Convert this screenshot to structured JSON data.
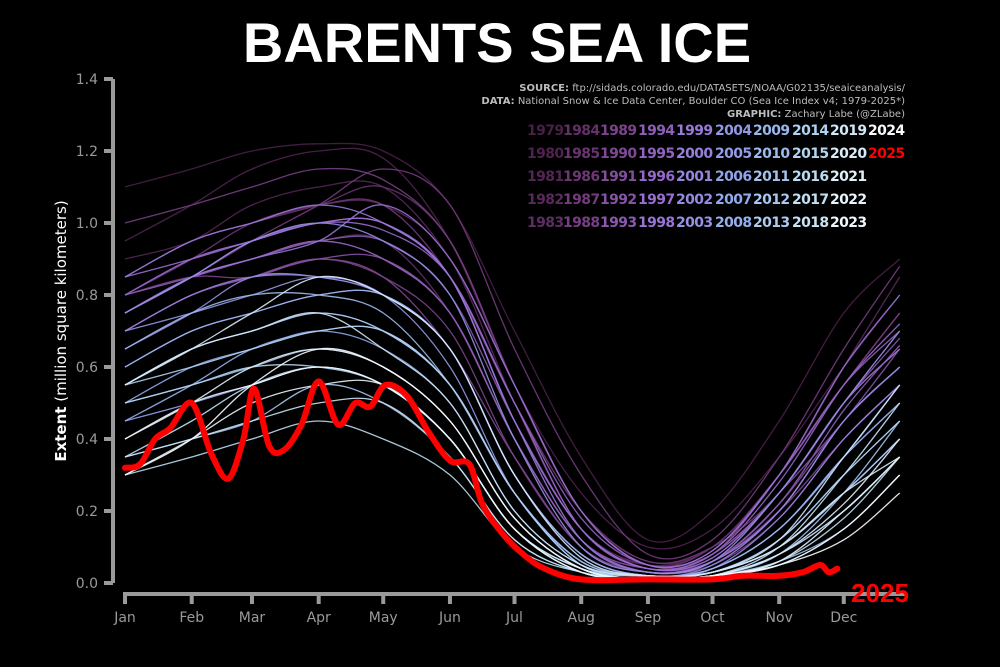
{
  "title": "BARENTS SEA ICE",
  "credits": {
    "source_label": "SOURCE:",
    "source": "ftp://sidads.colorado.edu/DATASETS/NOAA/G02135/seaiceanalysis/",
    "data_label": "DATA:",
    "data": "National Snow & Ice Data Center, Boulder CO (Sea Ice Index v4; 1979-2025*)",
    "graphic_label": "GRAPHIC:",
    "graphic": "Zachary Labe (@ZLabe)"
  },
  "chart_data": {
    "type": "line",
    "title": "BARENTS SEA ICE",
    "ylabel_bold": "Extent",
    "ylabel_rest": "(million square kilometers)",
    "xlabel": "",
    "ylim": [
      0,
      1.4
    ],
    "yticks": [
      "0.0",
      "0.2",
      "0.4",
      "0.6",
      "0.8",
      "1.0",
      "1.2",
      "1.4"
    ],
    "xticks": [
      "Jan",
      "Feb",
      "Mar",
      "Apr",
      "May",
      "Jun",
      "Jul",
      "Aug",
      "Sep",
      "Oct",
      "Nov",
      "Dec"
    ],
    "grid": false,
    "legend": "top-right",
    "colormap": [
      "#4a1f48",
      "#7a3f86",
      "#9a70d6",
      "#8ea8ec",
      "#b7dcf2",
      "#ffffff"
    ],
    "highlight_color": "#ff0000",
    "highlight_label": "2025",
    "history_x": [
      "01-01",
      "02-01",
      "03-01",
      "04-01",
      "05-01",
      "06-01",
      "07-01",
      "08-01",
      "09-01",
      "10-01",
      "11-01",
      "12-01",
      "12-27"
    ],
    "series": [
      {
        "name": "1979",
        "values": [
          1.1,
          1.15,
          1.2,
          1.22,
          1.2,
          1.05,
          0.7,
          0.35,
          0.12,
          0.2,
          0.45,
          0.75,
          0.9
        ]
      },
      {
        "name": "1980",
        "values": [
          0.95,
          1.05,
          1.15,
          1.2,
          1.18,
          0.95,
          0.55,
          0.25,
          0.1,
          0.15,
          0.35,
          0.6,
          0.8
        ]
      },
      {
        "name": "1981",
        "values": [
          0.9,
          0.95,
          1.05,
          1.1,
          1.1,
          0.9,
          0.55,
          0.2,
          0.06,
          0.1,
          0.3,
          0.55,
          0.75
        ]
      },
      {
        "name": "1982",
        "values": [
          0.85,
          0.95,
          1.0,
          1.05,
          1.05,
          0.9,
          0.5,
          0.15,
          0.05,
          0.1,
          0.3,
          0.6,
          0.85
        ]
      },
      {
        "name": "1983",
        "values": [
          0.8,
          0.9,
          0.95,
          1.0,
          1.0,
          0.85,
          0.45,
          0.15,
          0.05,
          0.08,
          0.25,
          0.5,
          0.7
        ]
      },
      {
        "name": "1984",
        "values": [
          0.75,
          0.85,
          0.9,
          0.95,
          0.95,
          0.75,
          0.4,
          0.12,
          0.04,
          0.06,
          0.2,
          0.45,
          0.6
        ]
      },
      {
        "name": "1985",
        "values": [
          0.85,
          0.95,
          1.0,
          1.05,
          1.1,
          0.95,
          0.55,
          0.2,
          0.05,
          0.1,
          0.3,
          0.55,
          0.75
        ]
      },
      {
        "name": "1986",
        "values": [
          0.8,
          0.9,
          1.0,
          1.05,
          1.05,
          0.85,
          0.5,
          0.2,
          0.06,
          0.1,
          0.25,
          0.5,
          0.65
        ]
      },
      {
        "name": "1987",
        "values": [
          0.75,
          0.85,
          0.95,
          1.05,
          1.15,
          1.05,
          0.65,
          0.3,
          0.08,
          0.12,
          0.35,
          0.65,
          0.88
        ]
      },
      {
        "name": "1988",
        "values": [
          1.0,
          1.05,
          1.1,
          1.15,
          1.12,
          0.95,
          0.55,
          0.2,
          0.05,
          0.08,
          0.3,
          0.55,
          0.75
        ]
      },
      {
        "name": "1989",
        "values": [
          0.8,
          0.85,
          0.85,
          0.9,
          0.85,
          0.7,
          0.35,
          0.1,
          0.03,
          0.06,
          0.2,
          0.4,
          0.55
        ]
      },
      {
        "name": "1990",
        "values": [
          0.7,
          0.8,
          0.85,
          0.9,
          0.85,
          0.65,
          0.35,
          0.1,
          0.03,
          0.05,
          0.18,
          0.4,
          0.55
        ]
      },
      {
        "name": "1991",
        "values": [
          0.75,
          0.85,
          0.9,
          0.95,
          0.9,
          0.75,
          0.4,
          0.12,
          0.03,
          0.06,
          0.22,
          0.45,
          0.6
        ]
      },
      {
        "name": "1992",
        "values": [
          0.7,
          0.8,
          0.85,
          0.9,
          0.9,
          0.75,
          0.4,
          0.12,
          0.04,
          0.07,
          0.25,
          0.45,
          0.65
        ]
      },
      {
        "name": "1993",
        "values": [
          0.75,
          0.85,
          0.9,
          0.95,
          0.95,
          0.8,
          0.45,
          0.15,
          0.04,
          0.08,
          0.25,
          0.5,
          0.68
        ]
      },
      {
        "name": "1994",
        "values": [
          0.8,
          0.85,
          0.9,
          0.95,
          0.9,
          0.75,
          0.4,
          0.12,
          0.03,
          0.06,
          0.22,
          0.48,
          0.66
        ]
      },
      {
        "name": "1995",
        "values": [
          0.75,
          0.85,
          0.95,
          1.0,
          1.0,
          0.85,
          0.5,
          0.18,
          0.05,
          0.09,
          0.3,
          0.55,
          0.7
        ]
      },
      {
        "name": "1996",
        "values": [
          0.8,
          0.9,
          0.95,
          1.0,
          0.98,
          0.85,
          0.5,
          0.15,
          0.04,
          0.08,
          0.28,
          0.55,
          0.72
        ]
      },
      {
        "name": "1997",
        "values": [
          0.85,
          0.9,
          0.95,
          1.0,
          1.0,
          0.85,
          0.45,
          0.15,
          0.04,
          0.07,
          0.25,
          0.5,
          0.65
        ]
      },
      {
        "name": "1998",
        "values": [
          0.75,
          0.85,
          0.9,
          0.95,
          1.05,
          0.9,
          0.55,
          0.2,
          0.05,
          0.09,
          0.3,
          0.6,
          0.8
        ]
      },
      {
        "name": "1999",
        "values": [
          0.85,
          0.95,
          1.0,
          1.05,
          1.0,
          0.85,
          0.45,
          0.12,
          0.03,
          0.06,
          0.2,
          0.45,
          0.6
        ]
      },
      {
        "name": "2000",
        "values": [
          0.7,
          0.8,
          0.85,
          0.85,
          0.8,
          0.65,
          0.3,
          0.08,
          0.02,
          0.04,
          0.15,
          0.35,
          0.5
        ]
      },
      {
        "name": "2001",
        "values": [
          0.6,
          0.7,
          0.75,
          0.8,
          0.8,
          0.65,
          0.3,
          0.08,
          0.02,
          0.04,
          0.18,
          0.4,
          0.55
        ]
      },
      {
        "name": "2002",
        "values": [
          0.65,
          0.75,
          0.85,
          0.85,
          0.8,
          0.65,
          0.3,
          0.08,
          0.02,
          0.05,
          0.2,
          0.45,
          0.6
        ]
      },
      {
        "name": "2003",
        "values": [
          0.75,
          0.85,
          0.95,
          1.0,
          0.95,
          0.8,
          0.4,
          0.1,
          0.03,
          0.06,
          0.25,
          0.5,
          0.7
        ]
      },
      {
        "name": "2004",
        "values": [
          0.7,
          0.75,
          0.8,
          0.85,
          0.8,
          0.6,
          0.25,
          0.06,
          0.02,
          0.03,
          0.12,
          0.3,
          0.45
        ]
      },
      {
        "name": "2005",
        "values": [
          0.55,
          0.65,
          0.7,
          0.75,
          0.7,
          0.55,
          0.25,
          0.06,
          0.02,
          0.03,
          0.1,
          0.25,
          0.4
        ]
      },
      {
        "name": "2006",
        "values": [
          0.45,
          0.5,
          0.55,
          0.6,
          0.55,
          0.4,
          0.15,
          0.04,
          0.01,
          0.02,
          0.08,
          0.2,
          0.35
        ]
      },
      {
        "name": "2007",
        "values": [
          0.5,
          0.6,
          0.65,
          0.7,
          0.65,
          0.5,
          0.2,
          0.05,
          0.02,
          0.03,
          0.1,
          0.25,
          0.4
        ]
      },
      {
        "name": "2008",
        "values": [
          0.45,
          0.55,
          0.65,
          0.7,
          0.7,
          0.55,
          0.25,
          0.06,
          0.02,
          0.04,
          0.15,
          0.35,
          0.5
        ]
      },
      {
        "name": "2009",
        "values": [
          0.6,
          0.7,
          0.75,
          0.8,
          0.8,
          0.65,
          0.3,
          0.08,
          0.02,
          0.04,
          0.15,
          0.35,
          0.55
        ]
      },
      {
        "name": "2010",
        "values": [
          0.65,
          0.75,
          0.8,
          0.8,
          0.75,
          0.55,
          0.25,
          0.06,
          0.02,
          0.03,
          0.1,
          0.25,
          0.4
        ]
      },
      {
        "name": "2011",
        "values": [
          0.5,
          0.55,
          0.6,
          0.65,
          0.6,
          0.45,
          0.18,
          0.04,
          0.01,
          0.02,
          0.06,
          0.15,
          0.3
        ]
      },
      {
        "name": "2012",
        "values": [
          0.35,
          0.4,
          0.45,
          0.55,
          0.5,
          0.35,
          0.12,
          0.03,
          0.01,
          0.02,
          0.08,
          0.25,
          0.45
        ]
      },
      {
        "name": "2013",
        "values": [
          0.55,
          0.65,
          0.7,
          0.75,
          0.7,
          0.55,
          0.25,
          0.05,
          0.02,
          0.03,
          0.1,
          0.25,
          0.4
        ]
      },
      {
        "name": "2014",
        "values": [
          0.55,
          0.6,
          0.65,
          0.7,
          0.7,
          0.55,
          0.25,
          0.05,
          0.02,
          0.03,
          0.12,
          0.3,
          0.45
        ]
      },
      {
        "name": "2015",
        "values": [
          0.5,
          0.55,
          0.6,
          0.6,
          0.55,
          0.4,
          0.15,
          0.04,
          0.01,
          0.02,
          0.08,
          0.2,
          0.35
        ]
      },
      {
        "name": "2016",
        "values": [
          0.3,
          0.35,
          0.4,
          0.45,
          0.4,
          0.3,
          0.1,
          0.03,
          0.01,
          0.02,
          0.05,
          0.15,
          0.3
        ]
      },
      {
        "name": "2017",
        "values": [
          0.35,
          0.45,
          0.55,
          0.6,
          0.55,
          0.4,
          0.15,
          0.04,
          0.01,
          0.02,
          0.06,
          0.18,
          0.35
        ]
      },
      {
        "name": "2018",
        "values": [
          0.35,
          0.4,
          0.45,
          0.5,
          0.5,
          0.35,
          0.12,
          0.03,
          0.01,
          0.02,
          0.1,
          0.3,
          0.5
        ]
      },
      {
        "name": "2019",
        "values": [
          0.55,
          0.65,
          0.7,
          0.75,
          0.65,
          0.5,
          0.2,
          0.05,
          0.02,
          0.03,
          0.12,
          0.35,
          0.55
        ]
      },
      {
        "name": "2020",
        "values": [
          0.55,
          0.65,
          0.75,
          0.85,
          0.8,
          0.65,
          0.3,
          0.07,
          0.02,
          0.03,
          0.1,
          0.25,
          0.35
        ]
      },
      {
        "name": "2021",
        "values": [
          0.4,
          0.5,
          0.6,
          0.65,
          0.6,
          0.45,
          0.18,
          0.04,
          0.01,
          0.02,
          0.08,
          0.22,
          0.4
        ]
      },
      {
        "name": "2022",
        "values": [
          0.3,
          0.4,
          0.5,
          0.55,
          0.55,
          0.4,
          0.15,
          0.03,
          0.01,
          0.02,
          0.06,
          0.2,
          0.35
        ]
      },
      {
        "name": "2023",
        "values": [
          0.4,
          0.5,
          0.55,
          0.6,
          0.55,
          0.4,
          0.15,
          0.03,
          0.01,
          0.02,
          0.05,
          0.15,
          0.3
        ]
      },
      {
        "name": "2024",
        "values": [
          0.3,
          0.4,
          0.55,
          0.65,
          0.6,
          0.45,
          0.18,
          0.04,
          0.01,
          0.02,
          0.05,
          0.12,
          0.25
        ]
      }
    ],
    "highlight_series": {
      "name": "2025",
      "x": [
        "01-01",
        "01-08",
        "01-15",
        "01-22",
        "02-01",
        "02-10",
        "02-18",
        "02-25",
        "03-02",
        "03-09",
        "03-16",
        "03-24",
        "04-01",
        "04-10",
        "04-18",
        "04-25",
        "05-02",
        "05-12",
        "05-22",
        "06-01",
        "06-10",
        "06-16",
        "06-25",
        "07-05",
        "07-15",
        "08-01",
        "09-01",
        "10-01",
        "10-15",
        "11-01",
        "11-12",
        "11-20",
        "11-24",
        "11-28"
      ],
      "values": [
        0.32,
        0.33,
        0.4,
        0.43,
        0.5,
        0.36,
        0.29,
        0.4,
        0.54,
        0.38,
        0.37,
        0.44,
        0.56,
        0.44,
        0.5,
        0.49,
        0.55,
        0.52,
        0.42,
        0.34,
        0.33,
        0.22,
        0.14,
        0.08,
        0.04,
        0.01,
        0.01,
        0.01,
        0.02,
        0.02,
        0.03,
        0.05,
        0.03,
        0.04
      ]
    }
  }
}
